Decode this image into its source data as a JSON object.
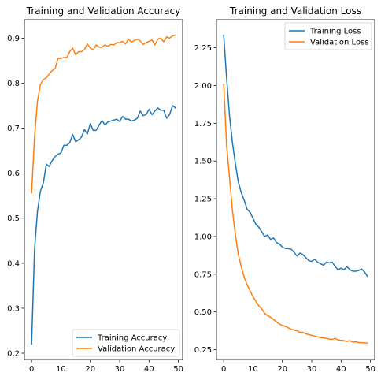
{
  "chart_data": [
    {
      "type": "line",
      "title": "Training and Validation Accuracy",
      "xlabel": "",
      "ylabel": "",
      "xlim": [
        -2.45,
        51.45
      ],
      "ylim": [
        0.186,
        0.941
      ],
      "xticks": [
        0,
        10,
        20,
        30,
        40,
        50
      ],
      "yticks": [
        0.2,
        0.3,
        0.4,
        0.5,
        0.6,
        0.7,
        0.8,
        0.9
      ],
      "yticks_format": 1,
      "legend": "lower-right",
      "grid": false,
      "x": [
        0,
        1,
        2,
        3,
        4,
        5,
        6,
        7,
        8,
        9,
        10,
        11,
        12,
        13,
        14,
        15,
        16,
        17,
        18,
        19,
        20,
        21,
        22,
        23,
        24,
        25,
        26,
        27,
        28,
        29,
        30,
        31,
        32,
        33,
        34,
        35,
        36,
        37,
        38,
        39,
        40,
        41,
        42,
        43,
        44,
        45,
        46,
        47,
        48,
        49
      ],
      "series": [
        {
          "name": "Training Accuracy",
          "color": "#1f77b4",
          "values": [
            0.22,
            0.43,
            0.515,
            0.56,
            0.578,
            0.62,
            0.615,
            0.628,
            0.637,
            0.642,
            0.645,
            0.662,
            0.662,
            0.668,
            0.686,
            0.67,
            0.674,
            0.68,
            0.697,
            0.687,
            0.71,
            0.695,
            0.695,
            0.707,
            0.717,
            0.707,
            0.714,
            0.716,
            0.718,
            0.72,
            0.715,
            0.726,
            0.72,
            0.72,
            0.716,
            0.718,
            0.722,
            0.738,
            0.728,
            0.73,
            0.742,
            0.73,
            0.738,
            0.745,
            0.74,
            0.74,
            0.722,
            0.73,
            0.75,
            0.745
          ]
        },
        {
          "name": "Validation Accuracy",
          "color": "#ff7f0e",
          "values": [
            0.556,
            0.68,
            0.76,
            0.797,
            0.808,
            0.812,
            0.82,
            0.828,
            0.832,
            0.855,
            0.855,
            0.857,
            0.857,
            0.87,
            0.878,
            0.863,
            0.87,
            0.87,
            0.875,
            0.887,
            0.878,
            0.874,
            0.885,
            0.88,
            0.88,
            0.885,
            0.882,
            0.886,
            0.885,
            0.89,
            0.89,
            0.893,
            0.887,
            0.898,
            0.891,
            0.895,
            0.898,
            0.894,
            0.886,
            0.89,
            0.893,
            0.896,
            0.885,
            0.898,
            0.9,
            0.892,
            0.903,
            0.9,
            0.905,
            0.907
          ]
        }
      ]
    },
    {
      "type": "line",
      "title": "Training and Validation Loss",
      "xlabel": "",
      "ylabel": "",
      "xlim": [
        -2.45,
        51.45
      ],
      "ylim": [
        0.185,
        2.436
      ],
      "xticks": [
        0,
        10,
        20,
        30,
        40,
        50
      ],
      "yticks": [
        0.25,
        0.5,
        0.75,
        1.0,
        1.25,
        1.5,
        1.75,
        2.0,
        2.25
      ],
      "yticks_format": 2,
      "legend": "top-right",
      "grid": false,
      "x": [
        0,
        1,
        2,
        3,
        4,
        5,
        6,
        7,
        8,
        9,
        10,
        11,
        12,
        13,
        14,
        15,
        16,
        17,
        18,
        19,
        20,
        21,
        22,
        23,
        24,
        25,
        26,
        27,
        28,
        29,
        30,
        31,
        32,
        33,
        34,
        35,
        36,
        37,
        38,
        39,
        40,
        41,
        42,
        43,
        44,
        45,
        46,
        47,
        48,
        49
      ],
      "series": [
        {
          "name": "Training Loss",
          "color": "#1f77b4",
          "values": [
            2.335,
            2.05,
            1.8,
            1.62,
            1.48,
            1.36,
            1.29,
            1.24,
            1.18,
            1.16,
            1.12,
            1.08,
            1.06,
            1.03,
            1.0,
            1.01,
            0.98,
            0.99,
            0.96,
            0.95,
            0.93,
            0.92,
            0.92,
            0.915,
            0.895,
            0.87,
            0.89,
            0.88,
            0.86,
            0.84,
            0.835,
            0.85,
            0.83,
            0.82,
            0.81,
            0.83,
            0.825,
            0.83,
            0.8,
            0.78,
            0.79,
            0.78,
            0.8,
            0.78,
            0.77,
            0.77,
            0.775,
            0.785,
            0.765,
            0.735
          ]
        },
        {
          "name": "Validation Loss",
          "color": "#ff7f0e",
          "values": [
            2.01,
            1.6,
            1.39,
            1.17,
            1.01,
            0.88,
            0.8,
            0.73,
            0.68,
            0.64,
            0.6,
            0.57,
            0.54,
            0.52,
            0.49,
            0.475,
            0.465,
            0.45,
            0.435,
            0.42,
            0.41,
            0.405,
            0.395,
            0.385,
            0.38,
            0.375,
            0.365,
            0.365,
            0.355,
            0.35,
            0.345,
            0.34,
            0.335,
            0.33,
            0.328,
            0.325,
            0.32,
            0.318,
            0.325,
            0.315,
            0.312,
            0.31,
            0.305,
            0.31,
            0.3,
            0.302,
            0.298,
            0.296,
            0.295,
            0.294
          ]
        }
      ]
    }
  ]
}
